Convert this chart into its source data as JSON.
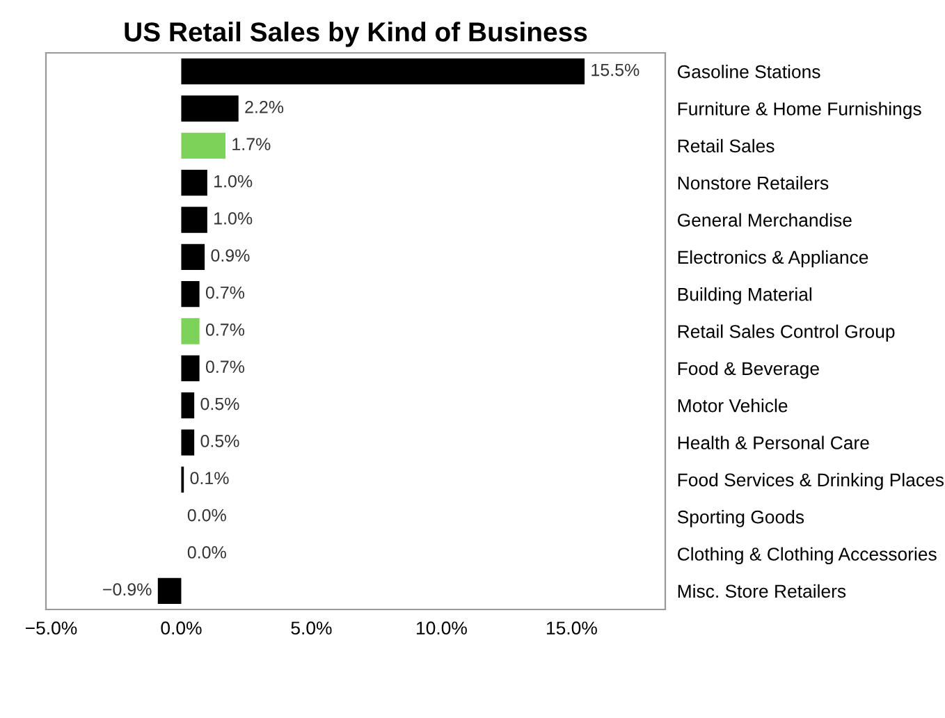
{
  "chart_data": {
    "type": "bar",
    "orientation": "horizontal",
    "title": "US Retail Sales by Kind of Business",
    "categories": [
      "Gasoline Stations",
      "Furniture & Home Furnishings",
      "Retail Sales",
      "Nonstore Retailers",
      "General Merchandise",
      "Electronics & Appliance",
      "Building Material",
      "Retail Sales Control Group",
      "Food & Beverage",
      "Motor Vehicle",
      "Health & Personal Care",
      "Food Services & Drinking Places",
      "Sporting Goods",
      "Clothing & Clothing Accessories",
      "Misc. Store Retailers"
    ],
    "values": [
      15.5,
      2.2,
      1.7,
      1.0,
      1.0,
      0.9,
      0.7,
      0.7,
      0.7,
      0.5,
      0.5,
      0.1,
      0.0,
      0.0,
      -0.9
    ],
    "value_labels": [
      "15.5%",
      "2.2%",
      "1.7%",
      "1.0%",
      "1.0%",
      "0.9%",
      "0.7%",
      "0.7%",
      "0.7%",
      "0.5%",
      "0.5%",
      "0.1%",
      "0.0%",
      "0.0%",
      "−0.9%"
    ],
    "colors": [
      "#000000",
      "#000000",
      "#7dd35a",
      "#000000",
      "#000000",
      "#000000",
      "#000000",
      "#7dd35a",
      "#000000",
      "#000000",
      "#000000",
      "#000000",
      "#000000",
      "#000000",
      "#000000"
    ],
    "xlim": [
      -5.2,
      18.6
    ],
    "xticks": [
      {
        "value": -5,
        "label": "−5.0%"
      },
      {
        "value": 0,
        "label": "0.0%"
      },
      {
        "value": 5,
        "label": "5.0%"
      },
      {
        "value": 10,
        "label": "10.0%"
      },
      {
        "value": 15,
        "label": "15.0%"
      }
    ],
    "grid": false
  }
}
